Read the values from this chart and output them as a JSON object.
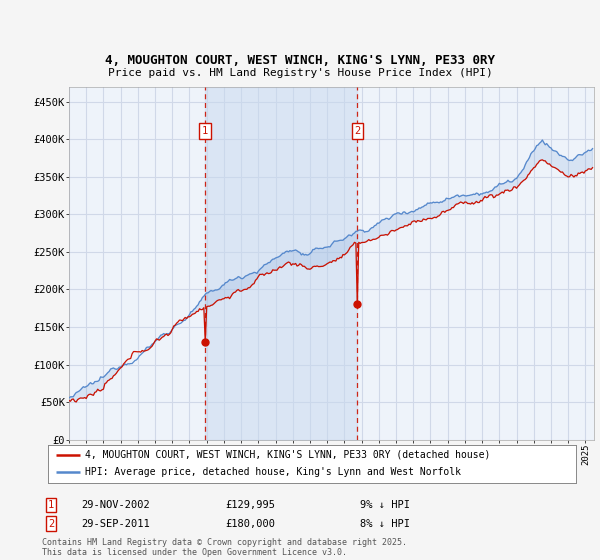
{
  "title": "4, MOUGHTON COURT, WEST WINCH, KING'S LYNN, PE33 0RY",
  "subtitle": "Price paid vs. HM Land Registry's House Price Index (HPI)",
  "ylim": [
    0,
    470000
  ],
  "yticks": [
    0,
    50000,
    100000,
    150000,
    200000,
    250000,
    300000,
    350000,
    400000,
    450000
  ],
  "ytick_labels": [
    "£0",
    "£50K",
    "£100K",
    "£150K",
    "£200K",
    "£250K",
    "£300K",
    "£350K",
    "£400K",
    "£450K"
  ],
  "fig_bg_color": "#f5f5f5",
  "plot_bg_color": "#eef3fa",
  "grid_color": "#d0d8e8",
  "sale1_date_x": 2002.91,
  "sale2_date_x": 2011.75,
  "sale1_date_str": "29-NOV-2002",
  "sale1_price_str": "£129,995",
  "sale1_pct_str": "9% ↓ HPI",
  "sale2_date_str": "29-SEP-2011",
  "sale2_price_str": "£180,000",
  "sale2_pct_str": "8% ↓ HPI",
  "legend_line1": "4, MOUGHTON COURT, WEST WINCH, KING'S LYNN, PE33 0RY (detached house)",
  "legend_line2": "HPI: Average price, detached house, King's Lynn and West Norfolk",
  "footer": "Contains HM Land Registry data © Crown copyright and database right 2025.\nThis data is licensed under the Open Government Licence v3.0.",
  "hpi_color": "#5588cc",
  "price_color": "#cc1100",
  "dashed_color": "#cc1100",
  "between_fill_color": "#c8d8ef",
  "xlim_start": 1995,
  "xlim_end": 2025.5
}
